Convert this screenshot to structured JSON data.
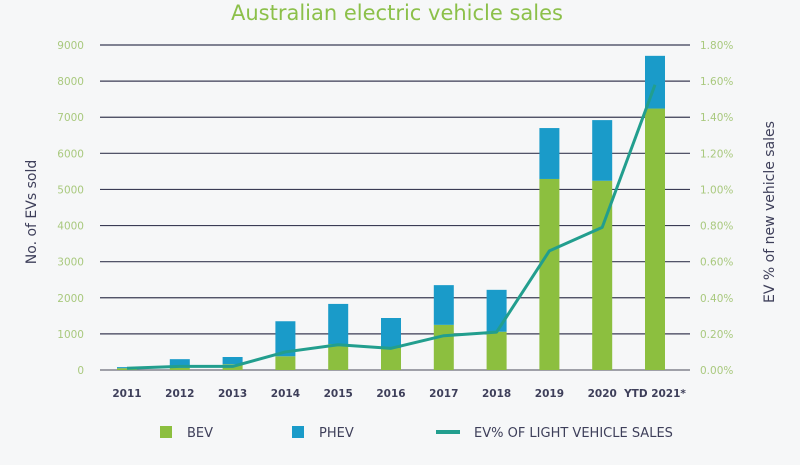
{
  "chart_data": {
    "type": "bar",
    "stacked": true,
    "title": "Australian electric vehicle sales",
    "xlabel": "",
    "ylabel": "No. of EVs sold",
    "y2label": "EV % of new vehicle sales",
    "categories": [
      "2011",
      "2012",
      "2013",
      "2014",
      "2015",
      "2016",
      "2017",
      "2018",
      "2019",
      "2020",
      "YTD 2021*"
    ],
    "ylim": [
      0,
      9000
    ],
    "yticks": [
      "0",
      "1000",
      "2000",
      "3000",
      "4000",
      "5000",
      "6000",
      "7000",
      "8000",
      "9000"
    ],
    "y2lim": [
      0,
      1.8
    ],
    "y2ticks": [
      "0.00%",
      "0.20%",
      "0.40%",
      "0.60%",
      "0.80%",
      "1.00%",
      "1.20%",
      "1.40%",
      "1.60%",
      "1.80%"
    ],
    "grid": true,
    "legend_position": "bottom",
    "series": [
      {
        "name": "BEV",
        "type": "bar",
        "axis": "left",
        "color": "#8cbf3f",
        "values": [
          50,
          60,
          160,
          380,
          720,
          610,
          1250,
          1060,
          5290,
          5240,
          7240
        ]
      },
      {
        "name": "PHEV",
        "type": "bar",
        "axis": "left",
        "color": "#1a9bc9",
        "values": [
          30,
          240,
          200,
          970,
          1110,
          830,
          1100,
          1160,
          1410,
          1680,
          1460
        ]
      },
      {
        "name": "EV% OF LIGHT VEHICLE SALES",
        "type": "line",
        "axis": "right",
        "color": "#229e8e",
        "values": [
          0.01,
          0.02,
          0.02,
          0.1,
          0.14,
          0.12,
          0.19,
          0.21,
          0.66,
          0.79,
          1.58
        ]
      }
    ]
  }
}
